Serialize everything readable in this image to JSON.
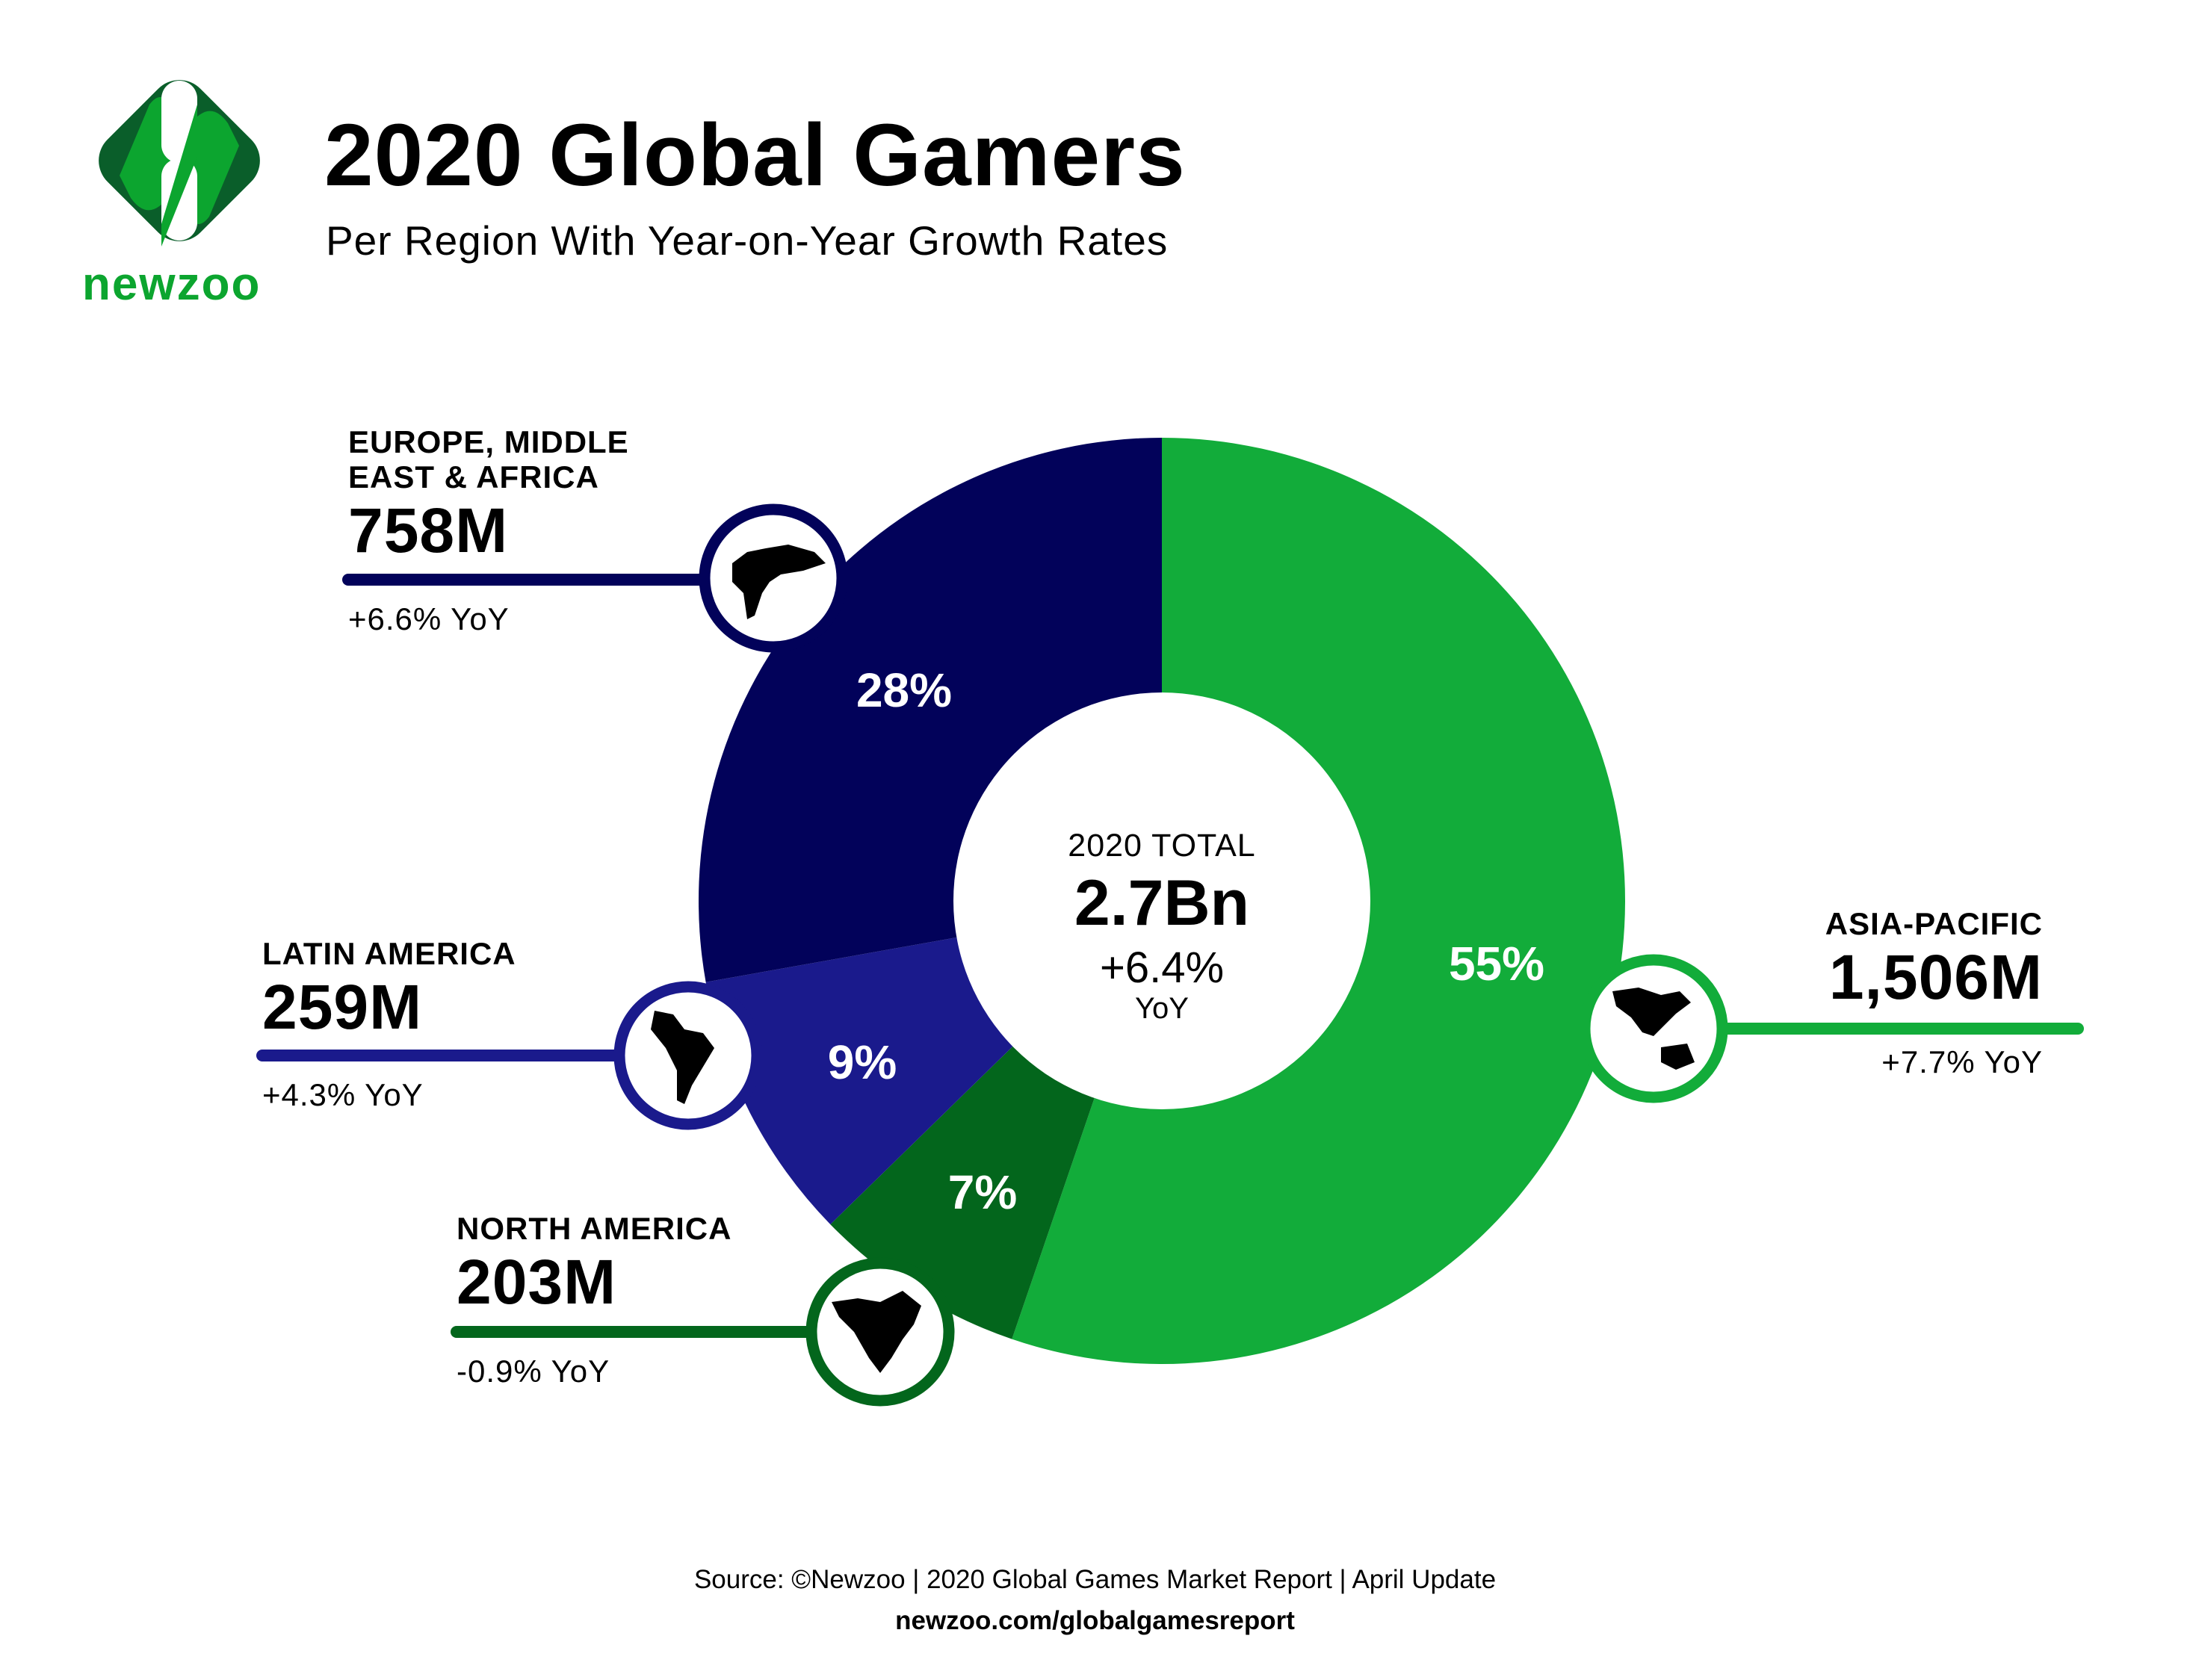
{
  "header": {
    "title": "2020 Global Gamers",
    "subtitle": "Per Region With Year-on-Year Growth Rates",
    "brand": "newzoo"
  },
  "chart_data": {
    "type": "pie",
    "style": "donut",
    "title": "2020 Global Gamers",
    "subtitle": "Per Region With Year-on-Year Growth Rates",
    "center": {
      "label": "2020 TOTAL",
      "value": "2.7Bn",
      "growth": "+6.4%",
      "growth_label": "YoY"
    },
    "slices": [
      {
        "name": "ASIA-PACIFIC",
        "value": 1506,
        "value_label": "1,506M",
        "percent_label": "55%",
        "yoy": "+7.7% YoY",
        "color": "#12ac3a"
      },
      {
        "name": "NORTH AMERICA",
        "value": 203,
        "value_label": "203M",
        "percent_label": "7%",
        "yoy": "-0.9% YoY",
        "color": "#03661c"
      },
      {
        "name": "LATIN AMERICA",
        "value": 259,
        "value_label": "259M",
        "percent_label": "9%",
        "yoy": "+4.3% YoY",
        "color": "#1a1a8c"
      },
      {
        "name": "EUROPE, MIDDLE EAST & AFRICA",
        "name_lines": [
          "EUROPE, MIDDLE",
          "EAST & AFRICA"
        ],
        "value": 758,
        "value_label": "758M",
        "percent_label": "28%",
        "yoy": "+6.6% YoY",
        "color": "#02025a"
      }
    ],
    "icons": [
      "asia-pacific-map-icon",
      "north-america-map-icon",
      "latin-america-map-icon",
      "emea-map-icon"
    ]
  },
  "footer": {
    "source": "Source: ©Newzoo | 2020 Global Games Market Report | April Update",
    "url": "newzoo.com/globalgamesreport"
  }
}
